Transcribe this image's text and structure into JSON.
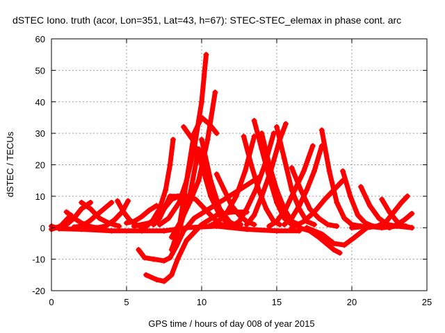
{
  "chart_data": {
    "type": "line",
    "title": "dSTEC Iono. truth (acor, Lon=351, Lat=43, h=67): STEC-STEC_elemax in phase cont. arc",
    "xlabel": "GPS time / hours of day 008 of year 2015",
    "ylabel": "dSTEC  / TECUs",
    "xlim": [
      0,
      25
    ],
    "ylim": [
      -20,
      60
    ],
    "xticks": [
      0,
      5,
      10,
      15,
      20,
      25
    ],
    "yticks": [
      -20,
      -10,
      0,
      10,
      20,
      30,
      40,
      50,
      60
    ],
    "grid": true,
    "legend": "none",
    "marker": "+",
    "color": "#ff0000",
    "series": [
      {
        "x": [
          0.0,
          0.3,
          0.6,
          0.9,
          1.3
        ],
        "y": [
          0.5,
          0,
          0.5,
          2,
          4
        ]
      },
      {
        "x": [
          0.0,
          0.5,
          1.0,
          1.5,
          2.0
        ],
        "y": [
          -0.5,
          0.3,
          1.5,
          3,
          6
        ]
      },
      {
        "x": [
          0.5,
          1.0,
          1.5,
          2.0,
          2.6
        ],
        "y": [
          0,
          1,
          3,
          6,
          8
        ]
      },
      {
        "x": [
          1.0,
          1.5,
          2.0,
          2.5,
          3.0
        ],
        "y": [
          5,
          3,
          1.5,
          0.5,
          0
        ]
      },
      {
        "x": [
          1.5,
          2.0,
          2.5,
          3.0,
          3.5,
          4.0
        ],
        "y": [
          0.2,
          0.5,
          2,
          4,
          6,
          8
        ]
      },
      {
        "x": [
          2.0,
          2.6,
          3.2,
          3.8,
          4.5
        ],
        "y": [
          8,
          6,
          3,
          1.5,
          0.5
        ]
      },
      {
        "x": [
          3.0,
          3.6,
          4.2,
          4.7,
          5.1
        ],
        "y": [
          0,
          0.5,
          2.5,
          5,
          8.5
        ]
      },
      {
        "x": [
          4.4,
          4.8,
          5.2,
          5.6,
          6.2
        ],
        "y": [
          8.5,
          5,
          2.5,
          1,
          0
        ]
      },
      {
        "x": [
          5.0,
          5.5,
          6.0,
          6.5,
          7.0
        ],
        "y": [
          1.5,
          2,
          3.5,
          5.5,
          7
        ]
      },
      {
        "x": [
          5.5,
          6.0,
          6.5,
          7.0,
          7.5,
          8.0,
          8.5
        ],
        "y": [
          0.5,
          1,
          1.5,
          3,
          6,
          9,
          10
        ]
      },
      {
        "x": [
          0.5,
          2,
          4,
          6,
          7.5,
          9,
          11,
          13,
          15,
          16.5
        ],
        "y": [
          -0.3,
          -0.5,
          -1,
          -1,
          -1,
          0,
          0.5,
          -0.5,
          -1,
          -1
        ]
      },
      {
        "x": [
          6.2,
          6.7,
          7.2,
          7.6,
          7.9,
          8.1
        ],
        "y": [
          0,
          2,
          6,
          12,
          20,
          28
        ]
      },
      {
        "x": [
          6.8,
          7.2,
          7.6,
          7.9,
          8.4,
          9.0
        ],
        "y": [
          1,
          3,
          7,
          10,
          10,
          10
        ]
      },
      {
        "x": [
          5.8,
          6.2,
          6.8,
          7.5,
          7.9,
          8.3,
          8.8,
          9.5,
          10.5,
          11.5,
          12.5,
          13.8
        ],
        "y": [
          -7,
          -9.5,
          -10,
          -10.5,
          -9.5,
          -6,
          -1,
          3,
          6,
          9,
          12,
          16
        ]
      },
      {
        "x": [
          6.3,
          7.0,
          7.5,
          8.0,
          8.4,
          9.0,
          10.0,
          11.0,
          12.0,
          13.0
        ],
        "y": [
          -15,
          -16.5,
          -17,
          -15,
          -10,
          -4,
          1,
          4,
          5,
          5
        ]
      },
      {
        "x": [
          7.2,
          7.8,
          8.5,
          9.0,
          9.5,
          10.0,
          10.3
        ],
        "y": [
          1,
          3,
          8,
          15,
          25,
          40,
          55
        ]
      },
      {
        "x": [
          8.0,
          8.6,
          9.2,
          9.8,
          10.4,
          10.9
        ],
        "y": [
          -3,
          2,
          8,
          15,
          28,
          43
        ]
      },
      {
        "x": [
          8.0,
          8.5,
          9.0,
          9.5,
          10.0,
          10.5,
          11.0
        ],
        "y": [
          -7,
          0,
          15,
          30,
          35,
          33,
          30
        ]
      },
      {
        "x": [
          8.6,
          9.2,
          9.8,
          10.5,
          11.2,
          12.0
        ],
        "y": [
          1,
          10,
          25,
          15,
          6,
          1
        ]
      },
      {
        "x": [
          8.8,
          9.4,
          10.0,
          10.6,
          11.2,
          11.8
        ],
        "y": [
          32,
          28,
          20,
          10,
          4,
          1
        ]
      },
      {
        "x": [
          9.0,
          9.6,
          10.2,
          10.8,
          11.3,
          11.8
        ],
        "y": [
          10,
          9,
          6,
          3,
          1,
          0.5
        ]
      },
      {
        "x": [
          10.0,
          10.6,
          11.2,
          11.8,
          12.2,
          12.6
        ],
        "y": [
          28,
          15,
          6,
          2,
          1,
          1
        ]
      },
      {
        "x": [
          10.5,
          11.1,
          11.7,
          12.3,
          12.9,
          13.5
        ],
        "y": [
          0.5,
          2,
          5,
          10,
          18,
          29
        ]
      },
      {
        "x": [
          11.0,
          11.5,
          12.0,
          12.5,
          13.0,
          13.5
        ],
        "y": [
          17,
          12,
          7,
          4,
          2,
          1
        ]
      },
      {
        "x": [
          12.0,
          12.5,
          13.0,
          13.6,
          14.2,
          14.8
        ],
        "y": [
          0.5,
          2,
          6,
          12,
          20,
          30
        ]
      },
      {
        "x": [
          12.8,
          13.3,
          13.8,
          14.3,
          14.8,
          15.2
        ],
        "y": [
          29,
          20,
          12,
          6,
          2,
          1
        ]
      },
      {
        "x": [
          13.5,
          14.0,
          14.5,
          15.0,
          15.5,
          16.0
        ],
        "y": [
          34,
          25,
          16,
          8,
          3,
          1
        ]
      },
      {
        "x": [
          13.0,
          13.5,
          14.0,
          14.6,
          15.2,
          15.6
        ],
        "y": [
          1,
          4,
          10,
          18,
          28,
          33
        ]
      },
      {
        "x": [
          14.0,
          14.5,
          15.0,
          15.5,
          16.0,
          16.5
        ],
        "y": [
          30,
          20,
          12,
          6,
          2,
          1
        ]
      },
      {
        "x": [
          14.5,
          15.0,
          15.6,
          16.2,
          16.8,
          17.4
        ],
        "y": [
          0.5,
          2,
          6,
          12,
          18,
          26
        ]
      },
      {
        "x": [
          15.0,
          15.5,
          16.0,
          16.5,
          17.0,
          17.5
        ],
        "y": [
          32,
          22,
          12,
          6,
          2,
          1
        ]
      },
      {
        "x": [
          15.5,
          16.0,
          16.5,
          17.0,
          17.5,
          18.0
        ],
        "y": [
          1,
          3,
          7,
          12,
          18,
          26
        ]
      },
      {
        "x": [
          16.0,
          16.6,
          17.2,
          17.8,
          18.4,
          19.0
        ],
        "y": [
          19,
          12,
          6,
          3,
          1,
          0.5
        ]
      },
      {
        "x": [
          16.5,
          17.2,
          17.8,
          18.3,
          18.8,
          19.2
        ],
        "y": [
          0,
          -1,
          -3,
          -5,
          -7,
          -8
        ]
      },
      {
        "x": [
          16.0,
          16.8,
          17.5,
          18.2,
          18.8,
          19.4
        ],
        "y": [
          0,
          2,
          5,
          9,
          12,
          15
        ]
      },
      {
        "x": [
          18.0,
          18.5,
          19.0,
          19.5,
          20.0,
          20.6
        ],
        "y": [
          31,
          18,
          8,
          3,
          1,
          0.5
        ]
      },
      {
        "x": [
          17.0,
          18.0,
          18.8,
          19.5,
          20.2,
          21.0
        ],
        "y": [
          0,
          -2,
          -5,
          -5.5,
          -3,
          0
        ]
      },
      {
        "x": [
          19.4,
          19.9,
          20.4,
          20.9,
          21.4,
          22.0
        ],
        "y": [
          18,
          10,
          4,
          1.5,
          0.5,
          0.5
        ]
      },
      {
        "x": [
          20.0,
          21.0,
          22.0,
          23.0,
          24.0
        ],
        "y": [
          0,
          0.5,
          0,
          0.5,
          0
        ]
      },
      {
        "x": [
          20.6,
          21.2,
          21.8,
          22.4,
          23.0,
          23.6
        ],
        "y": [
          13,
          7,
          3,
          1,
          0.5,
          0.5
        ]
      },
      {
        "x": [
          21.0,
          21.7,
          22.3,
          22.8,
          23.3,
          23.7
        ],
        "y": [
          0,
          0.5,
          2,
          5,
          8,
          10
        ]
      },
      {
        "x": [
          22.0,
          22.5,
          23.0,
          23.5,
          24.0
        ],
        "y": [
          9,
          5,
          2,
          0.5,
          0
        ]
      },
      {
        "x": [
          22.5,
          23.0,
          23.5,
          24.0
        ],
        "y": [
          0,
          1,
          2.5,
          4.5
        ]
      }
    ]
  }
}
